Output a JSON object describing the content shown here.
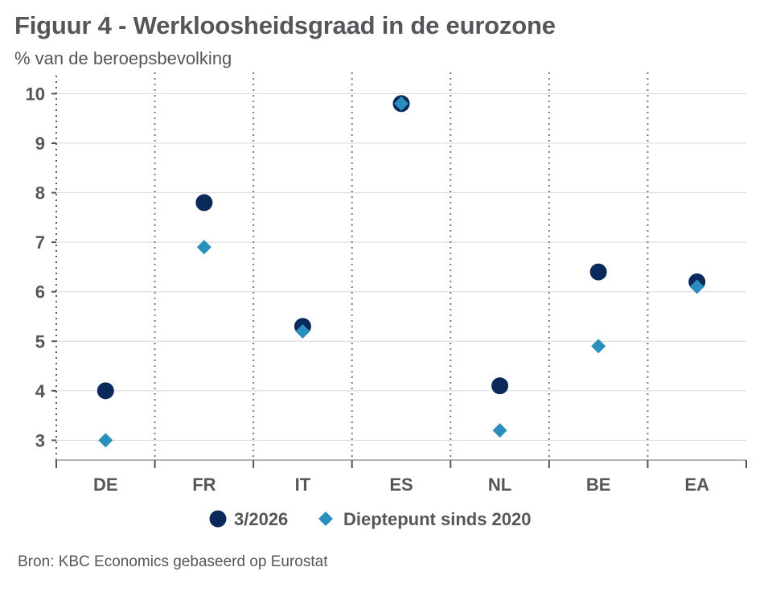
{
  "chart_data": {
    "type": "scatter",
    "title": "Figuur 4 - Werkloosheidsgraad in de eurozone",
    "subtitle": "% van de beroepsbevolking",
    "categories": [
      "DE",
      "FR",
      "IT",
      "ES",
      "NL",
      "BE",
      "EA"
    ],
    "series": [
      {
        "name": "3/2026",
        "marker": "circle",
        "color": "#0b2a5b",
        "values": [
          4.0,
          7.8,
          5.3,
          9.8,
          4.1,
          6.4,
          6.2
        ]
      },
      {
        "name": "Dieptepunt sinds 2020",
        "marker": "diamond",
        "color": "#2a8fbd",
        "values": [
          3.0,
          6.9,
          5.2,
          9.8,
          3.2,
          4.9,
          6.1
        ]
      }
    ],
    "yticks": [
      "3",
      "4",
      "5",
      "6",
      "7",
      "8",
      "9",
      "10"
    ],
    "ylim": [
      2.6,
      10.3
    ],
    "grid": true,
    "legend_position": "bottom-center",
    "source": "Bron: KBC Economics gebaseerd op Eurostat"
  }
}
